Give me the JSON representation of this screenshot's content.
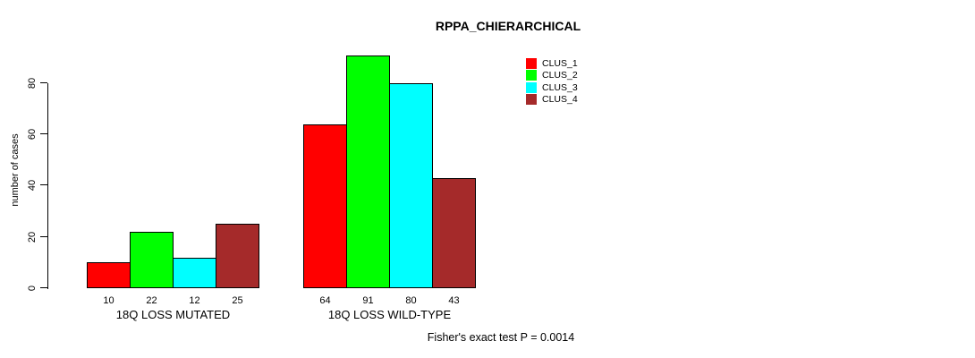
{
  "title": "RPPA_CHIERARCHICAL",
  "colors": {
    "background": "#ffffff",
    "axis": "#000000",
    "bar_border": "#000000",
    "text": "#000000"
  },
  "chart_data": {
    "type": "bar",
    "title": "RPPA_CHIERARCHICAL",
    "xlabel": "",
    "ylabel": "number of cases",
    "ylim": [
      0,
      80
    ],
    "yticks": [
      0,
      20,
      40,
      60,
      80
    ],
    "grid": false,
    "legend_position": "top-right",
    "bar_value_labels": true,
    "categories": [
      "18Q LOSS MUTATED",
      "18Q LOSS WILD-TYPE"
    ],
    "series": [
      {
        "name": "CLUS_1",
        "color": "#ff0000",
        "values": [
          10,
          64
        ]
      },
      {
        "name": "CLUS_2",
        "color": "#00ff00",
        "values": [
          22,
          91
        ]
      },
      {
        "name": "CLUS_3",
        "color": "#00ffff",
        "values": [
          12,
          80
        ]
      },
      {
        "name": "CLUS_4",
        "color": "#a52a2a",
        "values": [
          25,
          43
        ]
      }
    ],
    "annotation": "Fisher's exact test P = 0.0014"
  }
}
